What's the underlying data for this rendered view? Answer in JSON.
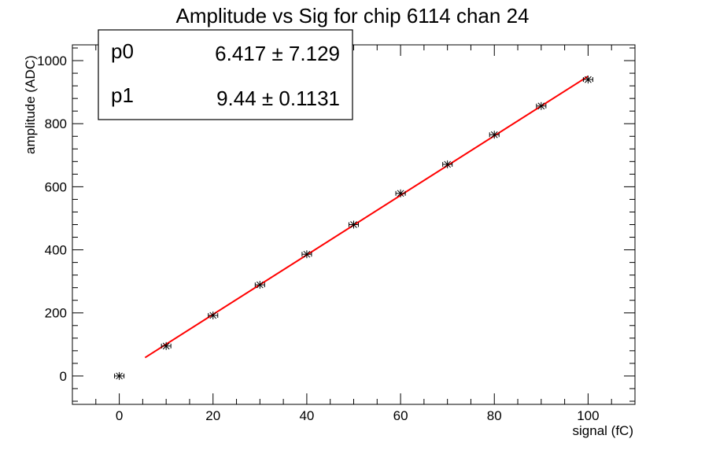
{
  "chart_data": {
    "type": "scatter",
    "title": "Amplitude vs Sig for chip 6114 chan 24",
    "xlabel": "signal (fC)",
    "ylabel": "amplitude (ADC)",
    "xlim": [
      -10,
      110
    ],
    "ylim": [
      -90,
      1050
    ],
    "x_ticks": [
      0,
      20,
      40,
      60,
      80,
      100
    ],
    "y_ticks": [
      0,
      200,
      400,
      600,
      800,
      1000
    ],
    "grid": false,
    "legend": "none",
    "series": [
      {
        "points": [
          {
            "x": 0,
            "y": 0
          },
          {
            "x": 10,
            "y": 95
          },
          {
            "x": 20,
            "y": 192
          },
          {
            "x": 30,
            "y": 289
          },
          {
            "x": 40,
            "y": 386
          },
          {
            "x": 50,
            "y": 480
          },
          {
            "x": 60,
            "y": 579
          },
          {
            "x": 70,
            "y": 671
          },
          {
            "x": 80,
            "y": 765
          },
          {
            "x": 90,
            "y": 856
          },
          {
            "x": 100,
            "y": 940
          }
        ],
        "color": "#000000"
      }
    ],
    "fit": {
      "x_range": [
        5.5,
        100
      ],
      "p0": 6.417,
      "p1": 9.44,
      "color": "#ff0000"
    },
    "stats_box": {
      "rows": [
        {
          "name": "p0",
          "value": "6.417 ± 7.129"
        },
        {
          "name": "p1",
          "value": "9.44 ± 0.1131"
        }
      ]
    }
  }
}
